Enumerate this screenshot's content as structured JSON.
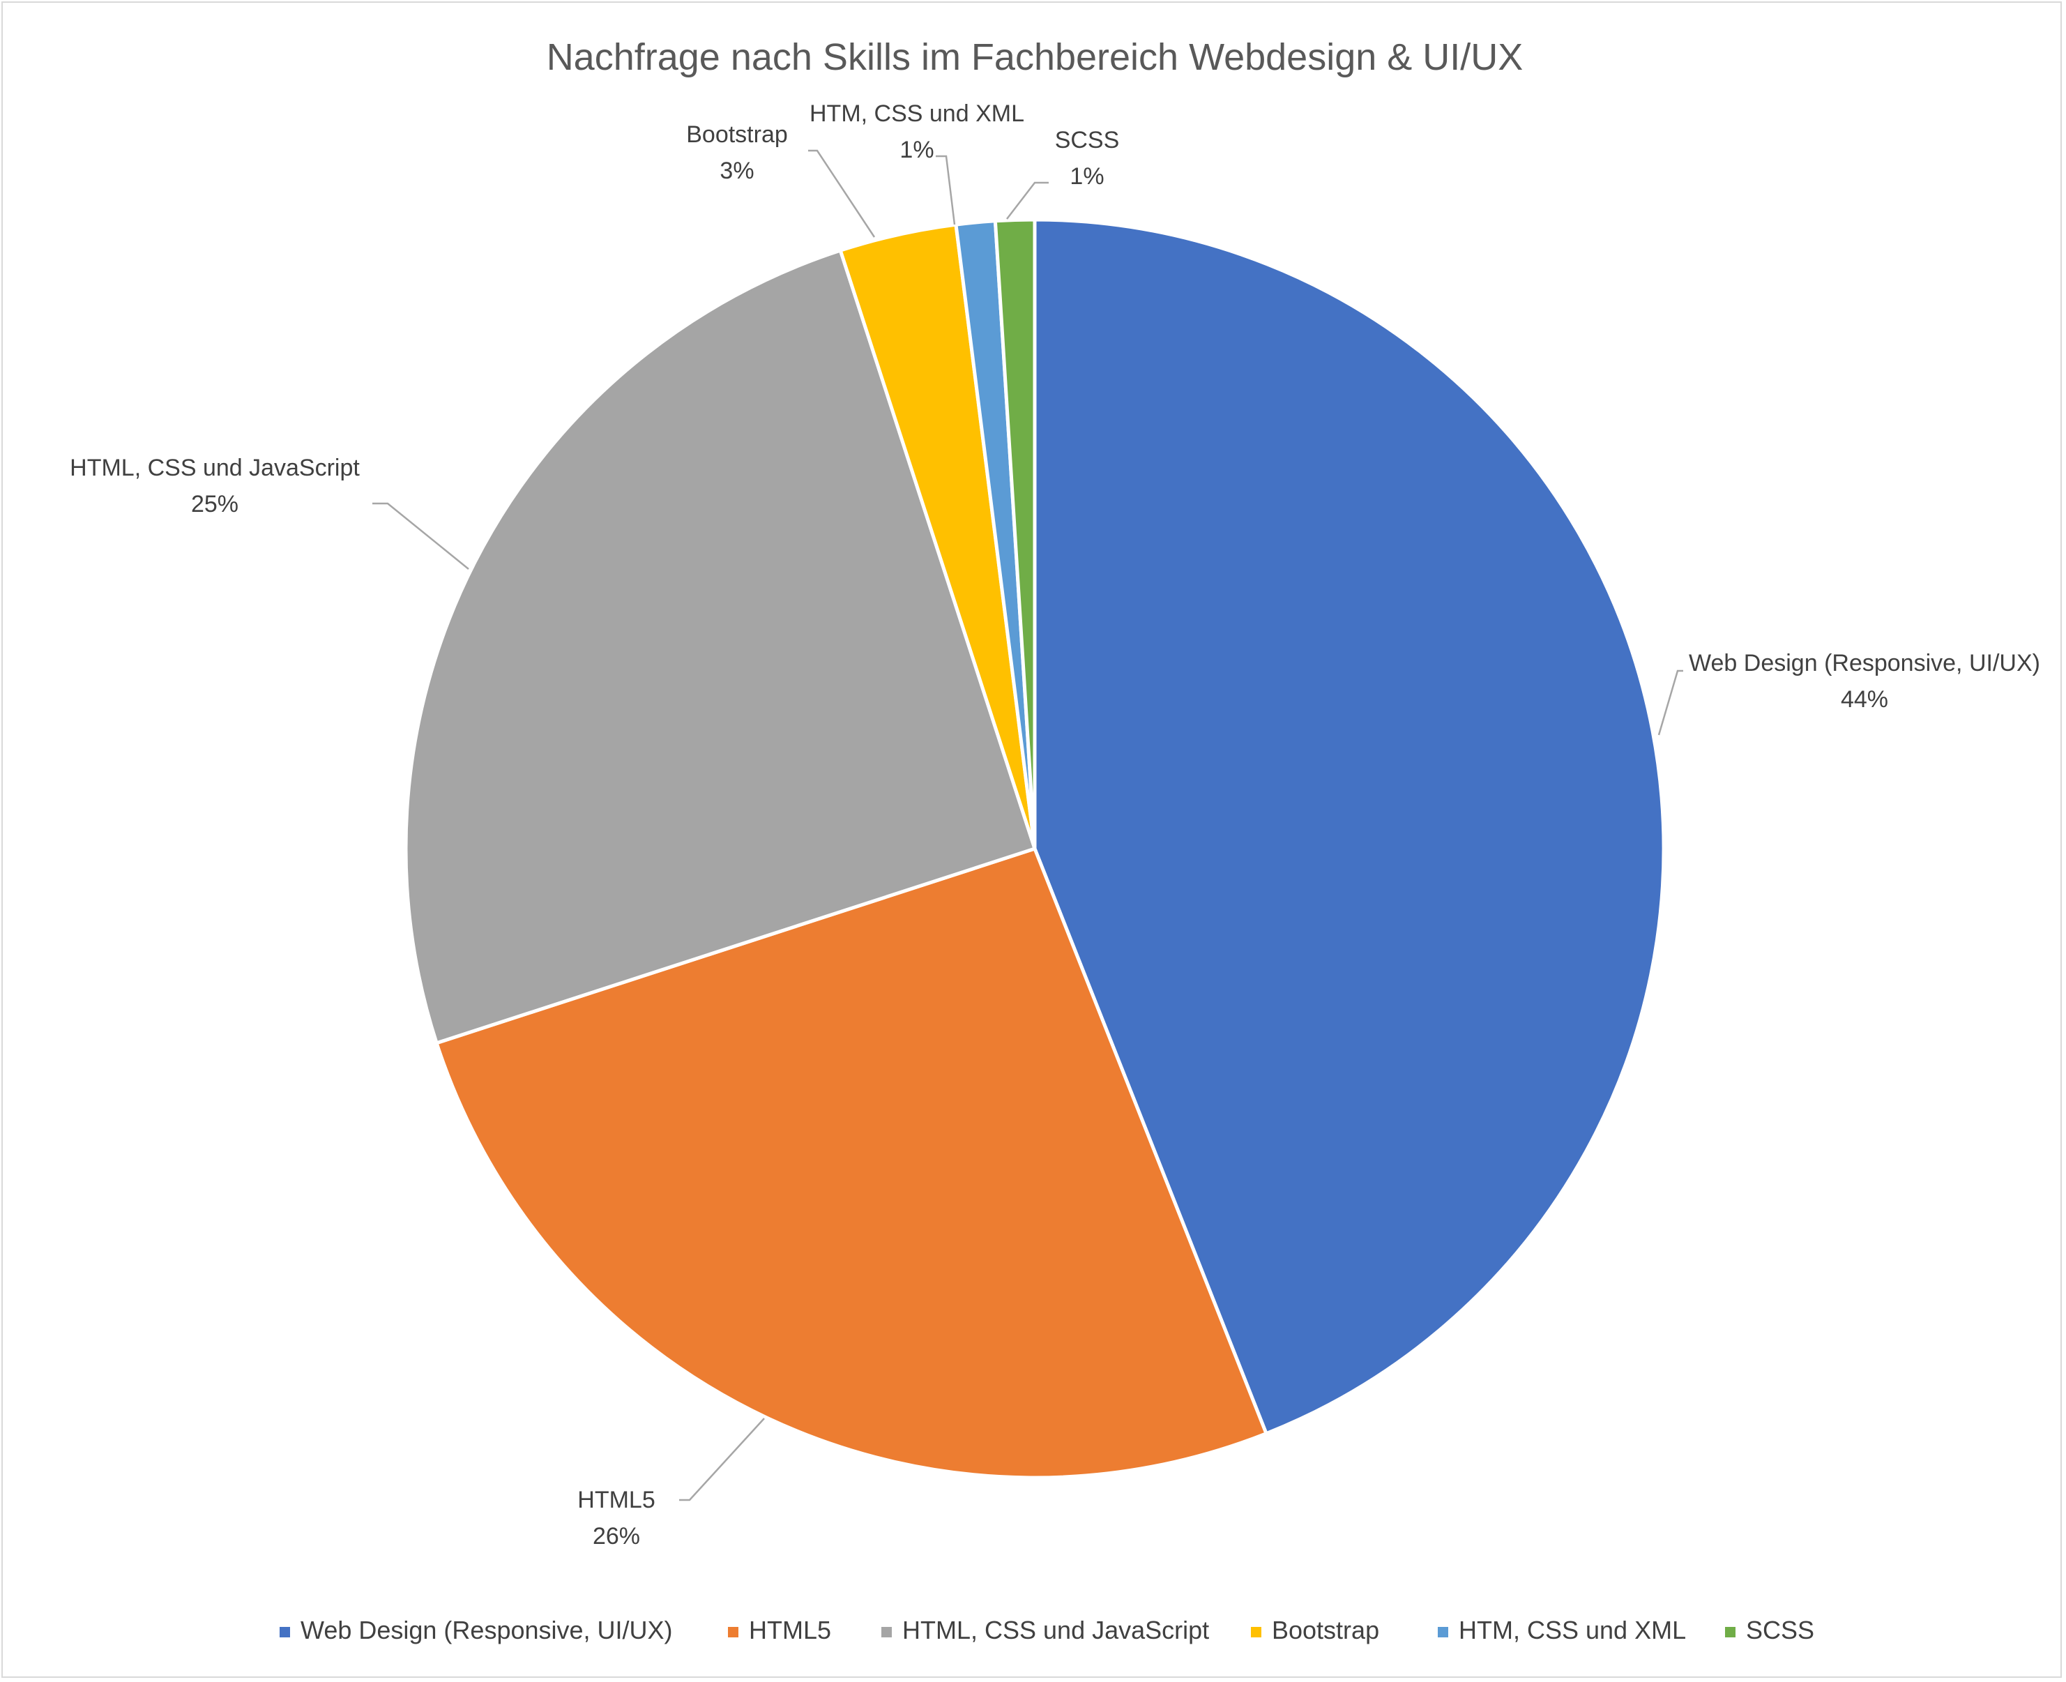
{
  "chart_data": {
    "type": "pie",
    "title": "Nachfrage nach Skills im Fachbereich Webdesign & UI/UX",
    "slices": [
      {
        "name": "Web Design (Responsive, UI/UX)",
        "value": 44,
        "label": "44%",
        "color": "#4472C4"
      },
      {
        "name": "HTML5",
        "value": 26,
        "label": "26%",
        "color": "#ED7D31"
      },
      {
        "name": "HTML, CSS und JavaScript",
        "value": 25,
        "label": "25%",
        "color": "#A5A5A5"
      },
      {
        "name": "Bootstrap",
        "value": 3,
        "label": "3%",
        "color": "#FFC000"
      },
      {
        "name": "HTM, CSS und XML",
        "value": 1,
        "label": "1%",
        "color": "#5B9BD5"
      },
      {
        "name": "SCSS",
        "value": 1,
        "label": "1%",
        "color": "#70AD47"
      }
    ],
    "legend_position": "bottom"
  }
}
